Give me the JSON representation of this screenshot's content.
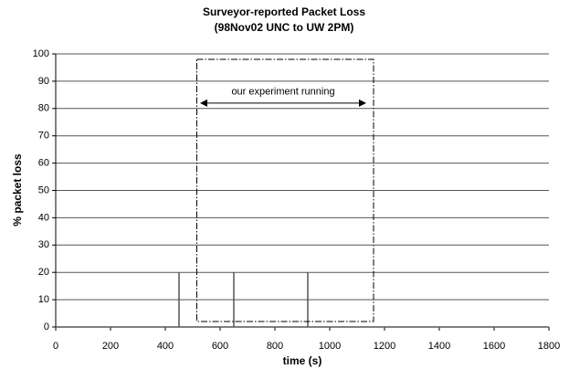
{
  "chart_data": {
    "type": "line",
    "title": "Surveyor-reported Packet Loss",
    "subtitle": "(98Nov02 UNC to UW 2PM)",
    "x_label": "time (s)",
    "y_label": "% packet loss",
    "x": [
      0,
      450,
      450,
      450,
      650,
      650,
      650,
      920,
      920,
      920,
      1800
    ],
    "values": [
      0,
      0,
      20,
      0,
      0,
      20,
      0,
      0,
      20,
      0,
      0
    ],
    "color": "#555555",
    "xlim": [
      0,
      1800
    ],
    "xticks": [
      0,
      200,
      400,
      600,
      800,
      1000,
      1200,
      1400,
      1600,
      1800
    ],
    "ylim": [
      0,
      100
    ],
    "yticks": [
      0,
      10,
      20,
      30,
      40,
      50,
      60,
      70,
      80,
      90,
      100
    ],
    "grid": true,
    "annotation": {
      "text": "our experiment running",
      "box_x": [
        515,
        1160
      ],
      "box_y": [
        2,
        98
      ],
      "arrow_x": [
        530,
        1130
      ],
      "arrow_y": 82
    }
  }
}
